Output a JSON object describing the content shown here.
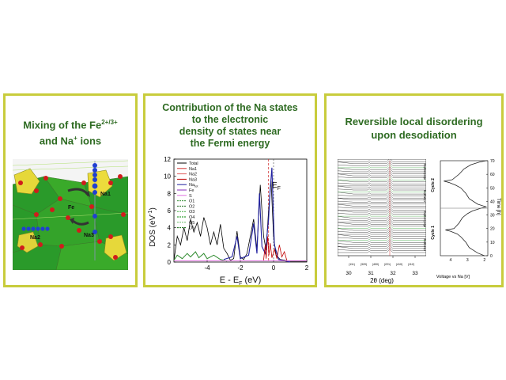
{
  "panel1": {
    "title_line1_pre": "Mixing of the Fe",
    "title_line1_sup": "2+/3+",
    "title_line2_pre": "and Na",
    "title_line2_sup": "+",
    "title_line2_post": " ions",
    "labels": {
      "na1": "Na1",
      "fe": "Fe",
      "na2": "Na2",
      "na3": "Na3"
    }
  },
  "panel2": {
    "title_lines": [
      "Contribution of the Na states",
      "to the electronic",
      "density of states near",
      "the Fermi energy"
    ],
    "chart_data": {
      "type": "line",
      "xlabel": "E - E",
      "xlabel_sub": "F",
      "xlabel_unit": " (eV)",
      "ylabel": "DOS (eV",
      "ylabel_sup": "-1",
      "ylabel_end": ")",
      "xlim": [
        -6,
        2
      ],
      "ylim": [
        0,
        12
      ],
      "x_ticks": [
        "-4",
        "-2",
        "0",
        "2"
      ],
      "y_ticks": [
        "0",
        "2",
        "4",
        "6",
        "8",
        "10",
        "12"
      ],
      "fermi_label": "E",
      "fermi_label_sub": "F",
      "legend": [
        "Total",
        "Na1",
        "Na2",
        "Na3",
        "Na",
        "Fe",
        "S",
        "O1",
        "O2",
        "O3",
        "O4",
        "O5",
        "O6"
      ],
      "legend_sub": {
        "4": "tot"
      },
      "legend_colors": [
        "#000000",
        "#d03030",
        "#e06060",
        "#c00000",
        "#2020a0",
        "#8a2bbd",
        "#e070e0",
        "#2e8b2e",
        "#1f6e1f",
        "#44aa44",
        "#008800",
        "#66bb66",
        "#006600"
      ]
    }
  },
  "panel3": {
    "title_lines": [
      "Reversible local disordering",
      "upon desodiation"
    ],
    "xrd": {
      "xlabel": "2θ (deg)",
      "x_ticks": [
        "30",
        "31",
        "32",
        "33"
      ],
      "peak_labels": [
        "(111)",
        "(320)",
        "(400)",
        "(221)",
        "(410)",
        "(112)"
      ]
    },
    "voltage": {
      "xlabel": "Voltage vs Na [V]",
      "x_ticks": [
        "4",
        "3",
        "2"
      ],
      "ylabel": "Time [h]",
      "y_ticks": [
        "0",
        "10",
        "20",
        "30",
        "40",
        "50",
        "60",
        "70"
      ],
      "cycle_labels": [
        "Cycle 1",
        "Cycle 2"
      ],
      "phase_labels": [
        "charging",
        "discharging",
        "charging",
        "discharging"
      ]
    }
  }
}
